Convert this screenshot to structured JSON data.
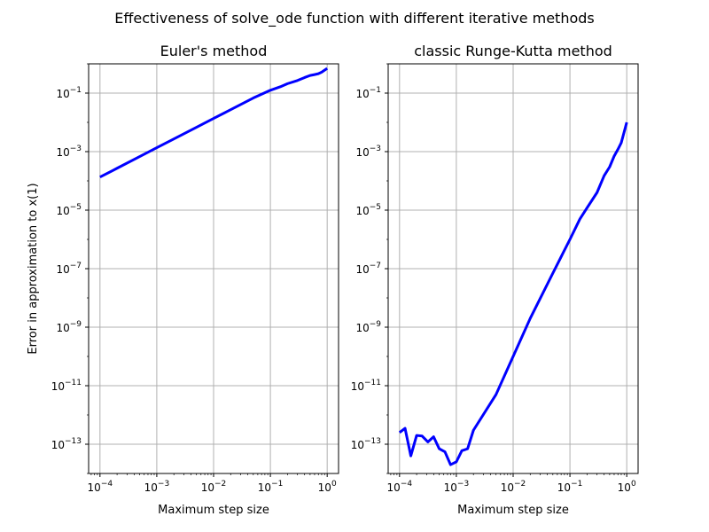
{
  "figure": {
    "suptitle": "Effectiveness of solve_ode function with different iterative methods"
  },
  "chart_data": [
    {
      "type": "line",
      "title": "Euler's method",
      "xlabel": "Maximum step size",
      "ylabel": "Error in approximation to x(1)",
      "xscale": "log",
      "yscale": "log",
      "xlim": [
        6.31e-05,
        1.585
      ],
      "ylim": [
        1e-14,
        1
      ],
      "grid": true,
      "color": "#0000ff",
      "xticks": [
        {
          "value": 0.0001,
          "base": "10",
          "exp": "−4"
        },
        {
          "value": 0.001,
          "base": "10",
          "exp": "−3"
        },
        {
          "value": 0.01,
          "base": "10",
          "exp": "−2"
        },
        {
          "value": 0.1,
          "base": "10",
          "exp": "−1"
        },
        {
          "value": 1,
          "base": "10",
          "exp": "0"
        }
      ],
      "yticks": [
        {
          "value": 1e-13,
          "base": "10",
          "exp": "−13"
        },
        {
          "value": 1e-11,
          "base": "10",
          "exp": "−11"
        },
        {
          "value": 1e-09,
          "base": "10",
          "exp": "−9"
        },
        {
          "value": 1e-07,
          "base": "10",
          "exp": "−7"
        },
        {
          "value": 1e-05,
          "base": "10",
          "exp": "−5"
        },
        {
          "value": 0.001,
          "base": "10",
          "exp": "−3"
        },
        {
          "value": 0.1,
          "base": "10",
          "exp": "−1"
        }
      ],
      "series": [
        {
          "x": [
            0.0001,
            0.0002,
            0.0005,
            0.001,
            0.002,
            0.005,
            0.01,
            0.02,
            0.05,
            0.1,
            0.15,
            0.2,
            0.3,
            0.4,
            0.5,
            0.6,
            0.7,
            0.8,
            1.0
          ],
          "y": [
            0.000135,
            0.00027,
            0.00068,
            0.00136,
            0.00272,
            0.0068,
            0.0136,
            0.0272,
            0.068,
            0.125,
            0.165,
            0.21,
            0.27,
            0.34,
            0.4,
            0.43,
            0.46,
            0.52,
            0.7
          ]
        }
      ]
    },
    {
      "type": "line",
      "title": "classic Runge-Kutta method",
      "xlabel": "Maximum step size",
      "ylabel": "",
      "xscale": "log",
      "yscale": "log",
      "xlim": [
        6.31e-05,
        1.585
      ],
      "ylim": [
        1e-14,
        1
      ],
      "grid": true,
      "color": "#0000ff",
      "xticks": [
        {
          "value": 0.0001,
          "base": "10",
          "exp": "−4"
        },
        {
          "value": 0.001,
          "base": "10",
          "exp": "−3"
        },
        {
          "value": 0.01,
          "base": "10",
          "exp": "−2"
        },
        {
          "value": 0.1,
          "base": "10",
          "exp": "−1"
        },
        {
          "value": 1,
          "base": "10",
          "exp": "0"
        }
      ],
      "yticks": [
        {
          "value": 1e-13,
          "base": "10",
          "exp": "−13"
        },
        {
          "value": 1e-11,
          "base": "10",
          "exp": "−11"
        },
        {
          "value": 1e-09,
          "base": "10",
          "exp": "−9"
        },
        {
          "value": 1e-07,
          "base": "10",
          "exp": "−7"
        },
        {
          "value": 1e-05,
          "base": "10",
          "exp": "−5"
        },
        {
          "value": 0.001,
          "base": "10",
          "exp": "−3"
        },
        {
          "value": 0.1,
          "base": "10",
          "exp": "−1"
        }
      ],
      "series": [
        {
          "x": [
            0.0001,
            0.000125,
            0.000158,
            0.0002,
            0.00025,
            0.000316,
            0.000398,
            0.0005,
            0.00063,
            0.00079,
            0.001,
            0.00125,
            0.00158,
            0.002,
            0.005,
            0.01,
            0.02,
            0.05,
            0.1,
            0.15,
            0.2,
            0.3,
            0.4,
            0.5,
            0.6,
            0.7,
            0.8,
            1.0
          ],
          "y": [
            2.5e-13,
            3.5e-13,
            4e-14,
            2e-13,
            1.9e-13,
            1.2e-13,
            1.8e-13,
            7e-14,
            5.5e-14,
            2e-14,
            2.5e-14,
            6e-14,
            7e-14,
            3e-13,
            5e-12,
            1e-10,
            2e-09,
            7e-08,
            1e-06,
            5e-06,
            1.2e-05,
            4e-05,
            0.00015,
            0.0003,
            0.0007,
            0.0012,
            0.002,
            0.01
          ]
        }
      ]
    }
  ]
}
